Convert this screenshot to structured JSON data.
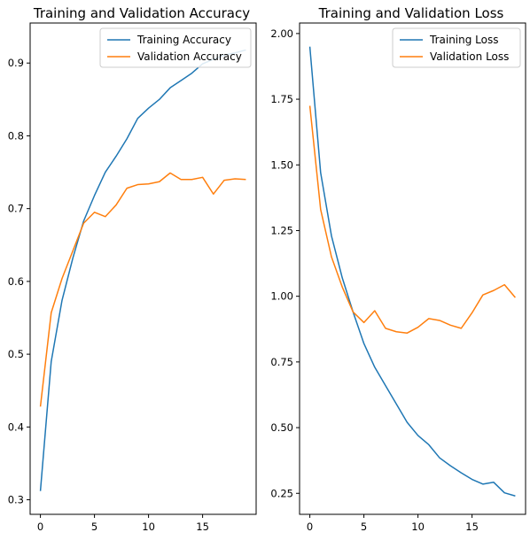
{
  "chart_data": [
    {
      "type": "line",
      "title": "Training and Validation Accuracy",
      "xlabel": "",
      "ylabel": "",
      "x": [
        0,
        1,
        2,
        3,
        4,
        5,
        6,
        7,
        8,
        9,
        10,
        11,
        12,
        13,
        14,
        15,
        16,
        17,
        18,
        19
      ],
      "xlim": [
        -0.95,
        19.95
      ],
      "ylim": [
        0.28,
        0.955
      ],
      "xticks": [
        0,
        5,
        10,
        15
      ],
      "xtick_labels": [
        "0",
        "5",
        "10",
        "15"
      ],
      "yticks": [
        0.3,
        0.4,
        0.5,
        0.6,
        0.7,
        0.8,
        0.9
      ],
      "ytick_labels": [
        "0.3",
        "0.4",
        "0.5",
        "0.6",
        "0.7",
        "0.8",
        "0.9"
      ],
      "grid": false,
      "legend_position": "top-right",
      "series": [
        {
          "name": "Training Accuracy",
          "color": "#1f77b4",
          "values": [
            0.312,
            0.49,
            0.574,
            0.632,
            0.683,
            0.718,
            0.75,
            0.772,
            0.796,
            0.824,
            0.838,
            0.85,
            0.866,
            0.876,
            0.886,
            0.899,
            0.905,
            0.911,
            0.914,
            0.918
          ]
        },
        {
          "name": "Validation Accuracy",
          "color": "#ff7f0e",
          "values": [
            0.428,
            0.557,
            0.604,
            0.642,
            0.68,
            0.695,
            0.689,
            0.705,
            0.728,
            0.733,
            0.734,
            0.737,
            0.749,
            0.74,
            0.74,
            0.743,
            0.72,
            0.739,
            0.741,
            0.74
          ]
        }
      ]
    },
    {
      "type": "line",
      "title": "Training and Validation Loss",
      "xlabel": "",
      "ylabel": "",
      "x": [
        0,
        1,
        2,
        3,
        4,
        5,
        6,
        7,
        8,
        9,
        10,
        11,
        12,
        13,
        14,
        15,
        16,
        17,
        18,
        19
      ],
      "xlim": [
        -0.95,
        19.95
      ],
      "ylim": [
        0.17,
        2.04
      ],
      "xticks": [
        0,
        5,
        10,
        15
      ],
      "xtick_labels": [
        "0",
        "5",
        "10",
        "15"
      ],
      "yticks": [
        0.25,
        0.5,
        0.75,
        1.0,
        1.25,
        1.5,
        1.75,
        2.0
      ],
      "ytick_labels": [
        "0.25",
        "0.50",
        "0.75",
        "1.00",
        "1.25",
        "1.50",
        "1.75",
        "2.00"
      ],
      "grid": false,
      "legend_position": "top-right",
      "series": [
        {
          "name": "Training Loss",
          "color": "#1f77b4",
          "values": [
            1.95,
            1.47,
            1.23,
            1.07,
            0.94,
            0.82,
            0.73,
            0.66,
            0.59,
            0.52,
            0.47,
            0.435,
            0.385,
            0.355,
            0.328,
            0.303,
            0.285,
            0.292,
            0.252,
            0.24
          ]
        },
        {
          "name": "Validation Loss",
          "color": "#ff7f0e",
          "values": [
            1.725,
            1.33,
            1.15,
            1.035,
            0.94,
            0.9,
            0.945,
            0.878,
            0.865,
            0.86,
            0.882,
            0.915,
            0.908,
            0.89,
            0.878,
            0.937,
            1.005,
            1.022,
            1.044,
            0.995
          ]
        }
      ]
    }
  ]
}
